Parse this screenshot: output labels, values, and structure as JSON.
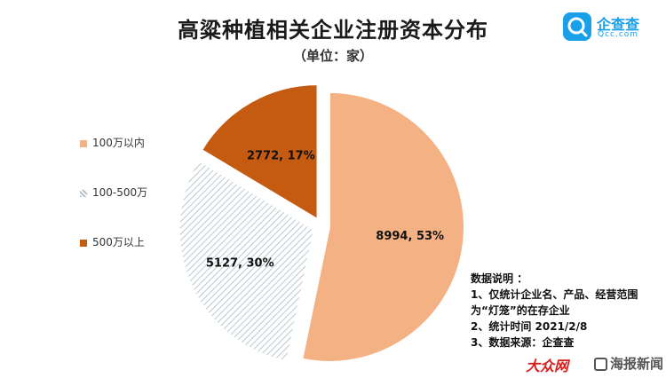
{
  "header": {
    "title": "高粱种植相关企业注册资本分布",
    "subtitle": "（单位：家）"
  },
  "brand": {
    "name": "企查查",
    "sub": "Qcc.com"
  },
  "chart_data": {
    "type": "pie",
    "categories": [
      "100万以内",
      "100-500万",
      "500万以上"
    ],
    "values": [
      8994,
      5127,
      2772
    ],
    "percents": [
      53,
      30,
      17
    ],
    "data_labels": [
      "8994, 53%",
      "5127, 30%",
      "2772, 17%"
    ],
    "colors": [
      "#f4b183",
      "#d9e2e6",
      "#c55a11"
    ],
    "pattern_fill": [
      false,
      true,
      false
    ],
    "exploded": true,
    "start_angle_deg": 0,
    "legend_position": "left"
  },
  "legend": {
    "items": [
      {
        "label": "100万以内"
      },
      {
        "label": "100-500万"
      },
      {
        "label": "500万以上"
      }
    ]
  },
  "notes": {
    "lines": [
      "数据说明 ：",
      "1、仅统计企业名、产品、经营范围",
      "为“灯笼”的在存企业",
      "2、统计时间  2021/2/8",
      "3、数据来源：企查查"
    ]
  },
  "footer": {
    "logo_left": "大众网",
    "logo_right": "海报新闻"
  }
}
